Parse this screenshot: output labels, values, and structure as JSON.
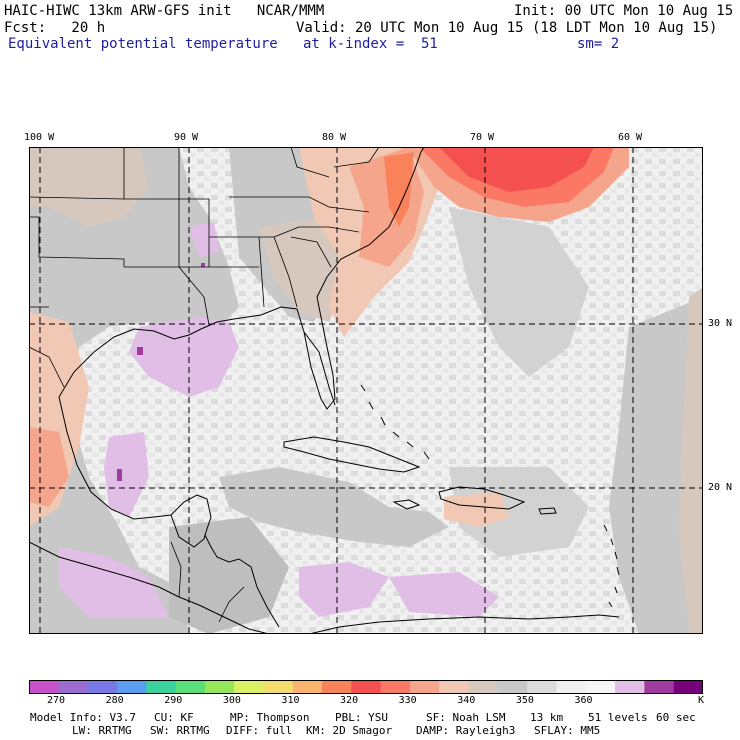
{
  "header": {
    "line1_left": "HAIC-HIWC 13km ARW-GFS init   NCAR/MMM",
    "line1_right": "Init: 00 UTC Mon 10 Aug 15",
    "line2_left": "Fcst:   20 h",
    "line2_right": "Valid: 20 UTC Mon 10 Aug 15 (18 LDT Mon 10 Aug 15)",
    "line3_left": "Equivalent potential temperature",
    "line3_mid": "at k-index =  51",
    "line3_right": "sm= 2"
  },
  "map": {
    "lon_labels": [
      "100 W",
      "90 W",
      "80 W",
      "70 W",
      "60 W"
    ],
    "lat_labels": [
      "30 N",
      "20 N"
    ]
  },
  "colorbar": {
    "ticks": [
      "270",
      "280",
      "290",
      "300",
      "310",
      "320",
      "330",
      "340",
      "350",
      "360"
    ],
    "unit": "K",
    "colors": [
      "#c850c8",
      "#9b6bd2",
      "#7878e6",
      "#5a9ef0",
      "#3cd2a0",
      "#5ade78",
      "#96e65a",
      "#dcf064",
      "#f5dc6e",
      "#fab46e",
      "#fa825a",
      "#f55050",
      "#fa7864",
      "#f5a58c",
      "#f0c8b4",
      "#d7c8be",
      "#c8c8c8",
      "#dcdcdc",
      "#f0f0f0",
      "#f5f5f5",
      "#e1bee6",
      "#a03ca0",
      "#780078"
    ]
  },
  "footer": {
    "model_info": "Model Info: V3.7",
    "cu": "CU: KF",
    "mp": "MP: Thompson",
    "pbl": "PBL: YSU",
    "sf": "SF: Noah LSM",
    "res": "13 km",
    "levels": "51 levels",
    "dt": "60 sec",
    "lw": "LW: RRTMG",
    "sw": "SW: RRTMG",
    "diff": "DIFF: full",
    "km": "KM: 2D Smagor",
    "damp": "DAMP: Rayleigh3",
    "sflay": "SFLAY: MM5"
  }
}
